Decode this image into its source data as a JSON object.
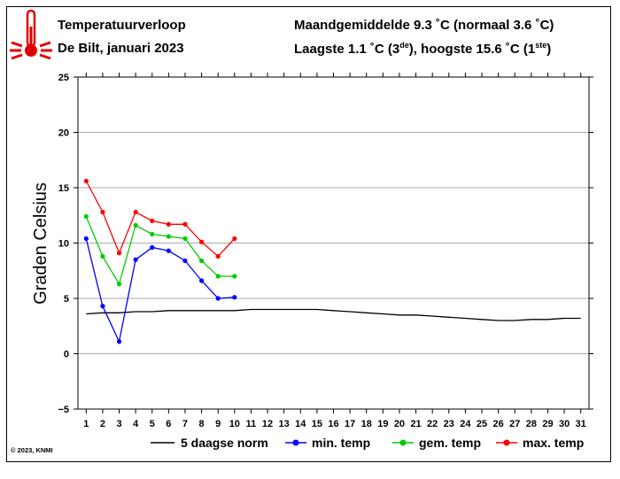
{
  "header": {
    "title": "Temperatuurverloop",
    "subtitle": "De Bilt, januari 2023",
    "stat_line1": "Maandgemiddelde 9.3 ˚C (normaal 3.6 ˚C)",
    "stat_line2_a": "Laagste 1.1 ˚C (3",
    "stat_line2_sup1": "de",
    "stat_line2_b": "), hoogste 15.6 ˚C (1",
    "stat_line2_sup2": "ste",
    "stat_line2_c": ")",
    "icon": "thermometer-icon"
  },
  "credit": "© 2023, KNMI",
  "colors": {
    "norm": "#000000",
    "min": "#0000ff",
    "avg": "#00cc00",
    "max": "#ff0000",
    "grid": "#aaaaaa",
    "icon": "#e00000"
  },
  "chart_data": {
    "type": "line",
    "ylabel": "Graden Celsius",
    "xlabel": "",
    "ylim": [
      -5,
      25
    ],
    "xlim": [
      0.5,
      31.5
    ],
    "yticks": [
      -5,
      0,
      5,
      10,
      15,
      20,
      25
    ],
    "xticks": [
      1,
      2,
      3,
      4,
      5,
      6,
      7,
      8,
      9,
      10,
      11,
      12,
      13,
      14,
      15,
      16,
      17,
      18,
      19,
      20,
      21,
      22,
      23,
      24,
      25,
      26,
      27,
      28,
      29,
      30,
      31
    ],
    "grid": true,
    "series": [
      {
        "name": "5 daagse norm",
        "key": "norm",
        "markers": false,
        "x": [
          1,
          2,
          3,
          4,
          5,
          6,
          7,
          8,
          9,
          10,
          11,
          12,
          13,
          14,
          15,
          16,
          17,
          18,
          19,
          20,
          21,
          22,
          23,
          24,
          25,
          26,
          27,
          28,
          29,
          30,
          31
        ],
        "values": [
          3.6,
          3.7,
          3.7,
          3.8,
          3.8,
          3.9,
          3.9,
          3.9,
          3.9,
          3.9,
          4.0,
          4.0,
          4.0,
          4.0,
          4.0,
          3.9,
          3.8,
          3.7,
          3.6,
          3.5,
          3.5,
          3.4,
          3.3,
          3.2,
          3.1,
          3.0,
          3.0,
          3.1,
          3.1,
          3.2,
          3.2
        ]
      },
      {
        "name": "min. temp",
        "key": "min",
        "markers": true,
        "x": [
          1,
          2,
          3,
          4,
          5,
          6,
          7,
          8,
          9,
          10
        ],
        "values": [
          10.4,
          4.3,
          1.1,
          8.5,
          9.6,
          9.3,
          8.4,
          6.6,
          5.0,
          5.1
        ]
      },
      {
        "name": "gem. temp",
        "key": "avg",
        "markers": true,
        "x": [
          1,
          2,
          3,
          4,
          5,
          6,
          7,
          8,
          9,
          10
        ],
        "values": [
          12.4,
          8.8,
          6.3,
          11.6,
          10.8,
          10.6,
          10.4,
          8.4,
          7.0,
          7.0
        ]
      },
      {
        "name": "max. temp",
        "key": "max",
        "markers": true,
        "x": [
          1,
          2,
          3,
          4,
          5,
          6,
          7,
          8,
          9,
          10
        ],
        "values": [
          15.6,
          12.8,
          9.1,
          12.8,
          12.0,
          11.7,
          11.7,
          10.1,
          8.8,
          10.4
        ]
      }
    ]
  }
}
